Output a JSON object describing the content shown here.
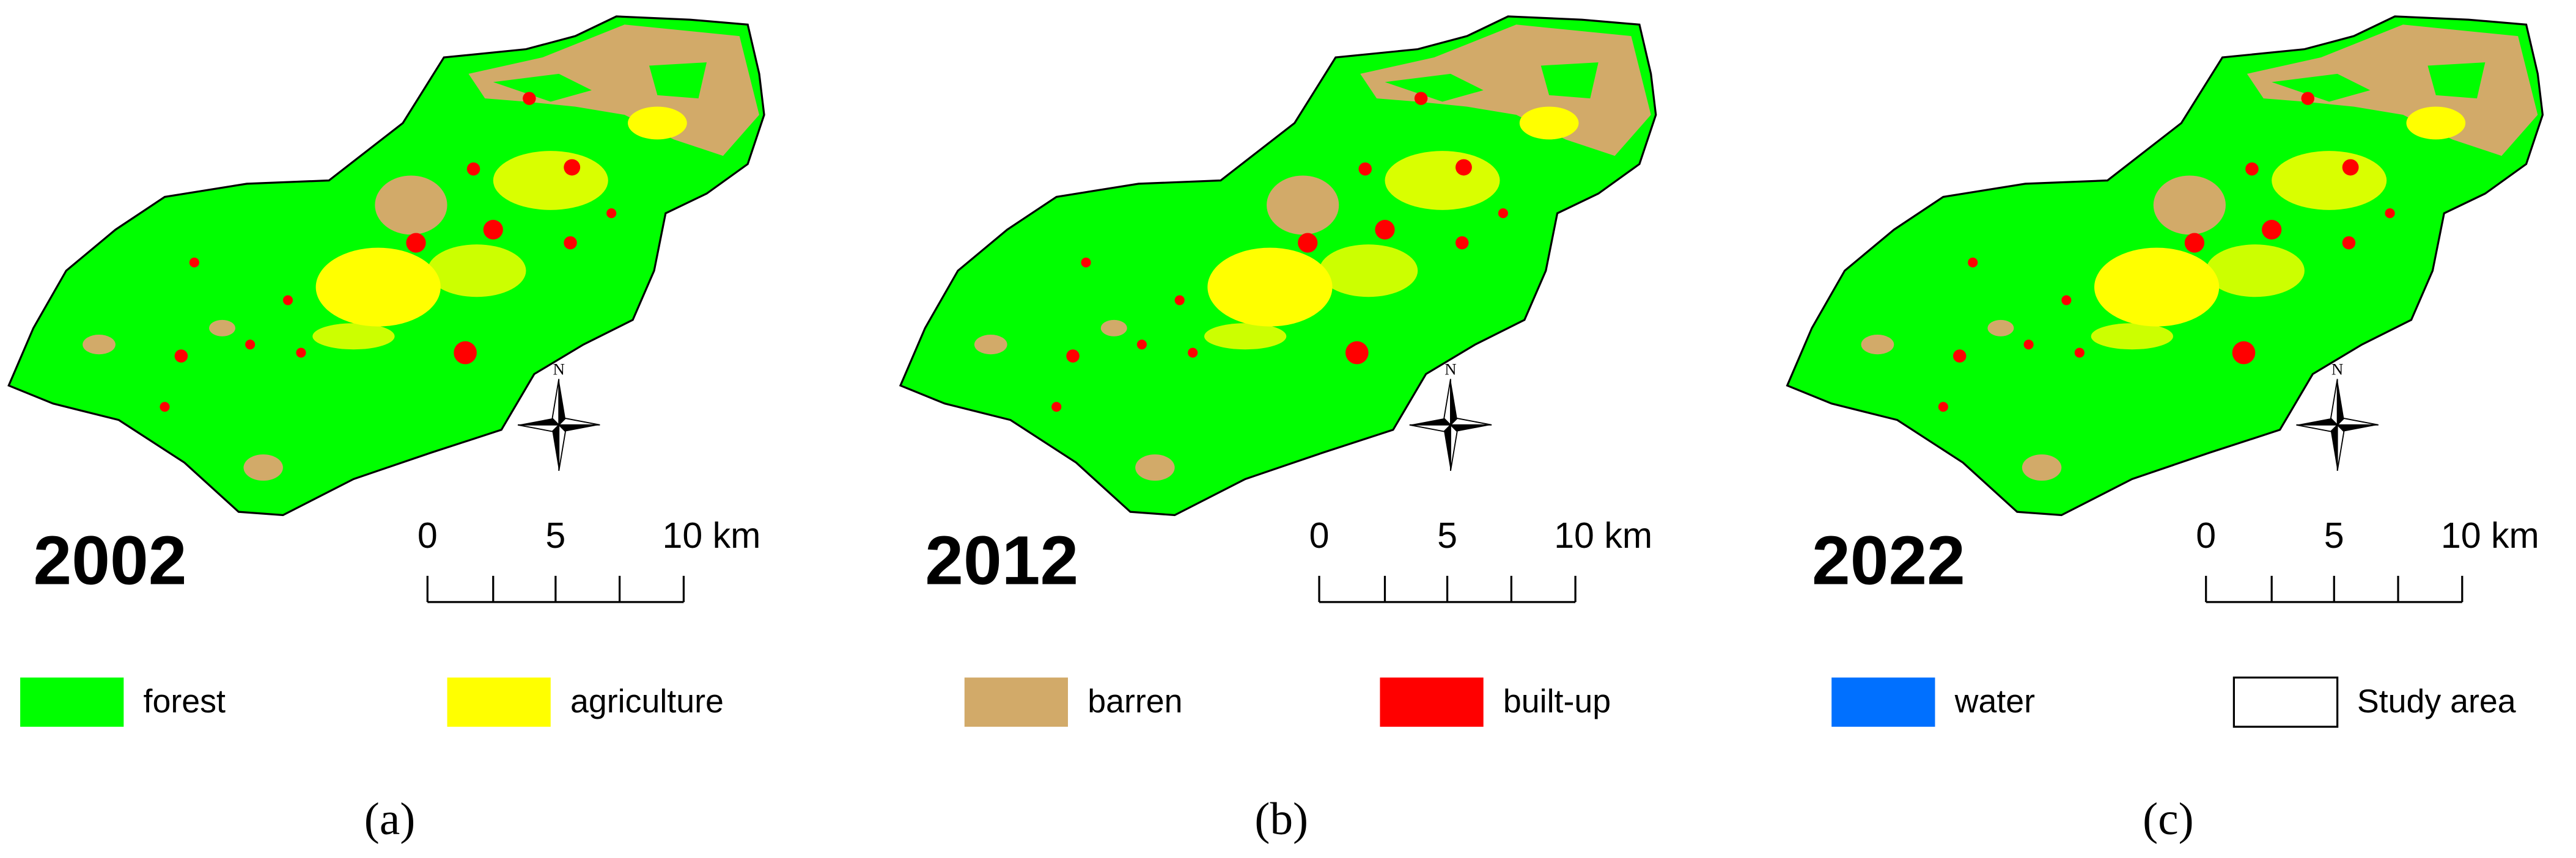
{
  "panels": [
    {
      "year": "2002",
      "north": "N",
      "scale_labels": [
        "0",
        "5",
        "10 km"
      ],
      "caption": "(a)"
    },
    {
      "year": "2012",
      "north": "N",
      "scale_labels": [
        "0",
        "5",
        "10 km"
      ],
      "caption": "(b)"
    },
    {
      "year": "2022",
      "north": "N",
      "scale_labels": [
        "0",
        "5",
        "10 km"
      ],
      "caption": "(c)"
    }
  ],
  "legend": [
    {
      "label": "forest",
      "color": "#00ff00"
    },
    {
      "label": "agriculture",
      "color": "#ffff00"
    },
    {
      "label": "barren",
      "color": "#d2aa69"
    },
    {
      "label": "built-up",
      "color": "#ff0000"
    },
    {
      "label": "water",
      "color": "#0070ff"
    },
    {
      "label": "Study area",
      "color": "#ffffff"
    }
  ]
}
